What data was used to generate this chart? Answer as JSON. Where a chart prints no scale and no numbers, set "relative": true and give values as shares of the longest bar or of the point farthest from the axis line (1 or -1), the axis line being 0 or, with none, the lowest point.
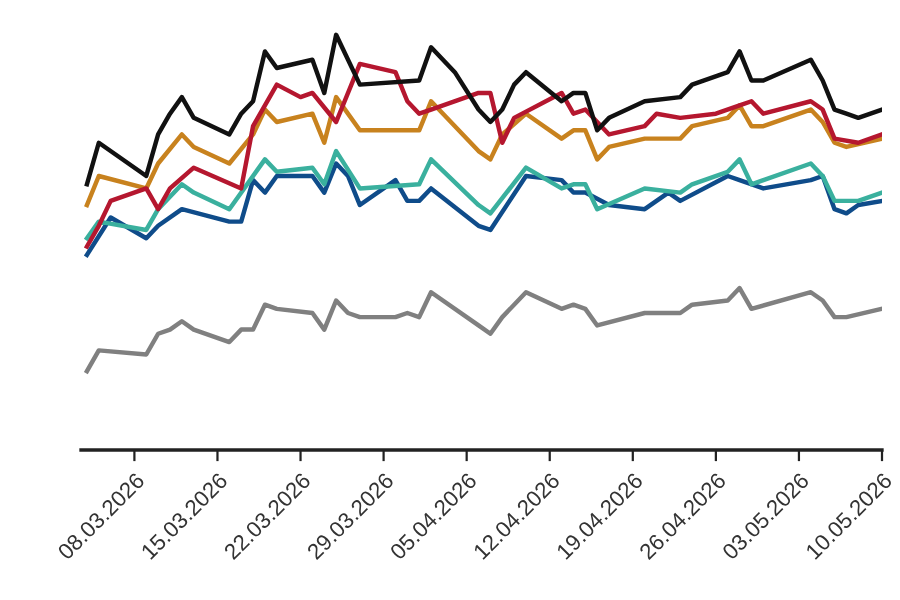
{
  "chart_data": {
    "type": "line",
    "relative": true,
    "line_style": "solid",
    "marker": "none",
    "xlim": [
      "2026-03-03T12:00",
      "2026-05-10"
    ],
    "xticks": [
      {
        "value": "2026-03-08",
        "label": "08.03.2026"
      },
      {
        "value": "2026-03-15",
        "label": "15.03.2026"
      },
      {
        "value": "2026-03-22",
        "label": "22.03.2026"
      },
      {
        "value": "2026-03-29",
        "label": "29.03.2026"
      },
      {
        "value": "2026-04-05",
        "label": "05.04.2026"
      },
      {
        "value": "2026-04-12",
        "label": "12.04.2026"
      },
      {
        "value": "2026-04-19",
        "label": "19.04.2026"
      },
      {
        "value": "2026-04-26",
        "label": "26.04.2026"
      },
      {
        "value": "2026-05-03",
        "label": "03.05.2026"
      },
      {
        "value": "2026-05-10",
        "label": "10.05.2026"
      }
    ],
    "series": [
      {
        "color": "#808080",
        "x": [
          "2026-03-04",
          "2026-03-05",
          "2026-03-09",
          "2026-03-10",
          "2026-03-11",
          "2026-03-12",
          "2026-03-13",
          "2026-03-16",
          "2026-03-17",
          "2026-03-18",
          "2026-03-19",
          "2026-03-20",
          "2026-03-23",
          "2026-03-24",
          "2026-03-25",
          "2026-03-26",
          "2026-03-27",
          "2026-03-30",
          "2026-03-31",
          "2026-04-01",
          "2026-04-02",
          "2026-04-06",
          "2026-04-07",
          "2026-04-08",
          "2026-04-10",
          "2026-04-13",
          "2026-04-14",
          "2026-04-15",
          "2026-04-16",
          "2026-04-20",
          "2026-04-23",
          "2026-04-24",
          "2026-04-27",
          "2026-04-28",
          "2026-04-29",
          "2026-05-04",
          "2026-05-05",
          "2026-05-06",
          "2026-05-07",
          "2026-05-10"
        ],
        "values": [
          0.19,
          0.24,
          0.23,
          0.28,
          0.29,
          0.31,
          0.29,
          0.26,
          0.29,
          0.29,
          0.35,
          0.34,
          0.33,
          0.29,
          0.36,
          0.33,
          0.32,
          0.32,
          0.33,
          0.32,
          0.38,
          0.3,
          0.28,
          0.32,
          0.38,
          0.34,
          0.35,
          0.34,
          0.3,
          0.33,
          0.33,
          0.35,
          0.36,
          0.39,
          0.34,
          0.38,
          0.36,
          0.32,
          0.32,
          0.34
        ]
      },
      {
        "color": "#0f4c8a",
        "x": [
          "2026-03-04",
          "2026-03-06",
          "2026-03-09",
          "2026-03-10",
          "2026-03-12",
          "2026-03-16",
          "2026-03-17",
          "2026-03-18",
          "2026-03-19",
          "2026-03-20",
          "2026-03-23",
          "2026-03-24",
          "2026-03-25",
          "2026-03-26",
          "2026-03-27",
          "2026-03-30",
          "2026-03-31",
          "2026-04-01",
          "2026-04-02",
          "2026-04-06",
          "2026-04-07",
          "2026-04-10",
          "2026-04-13",
          "2026-04-14",
          "2026-04-15",
          "2026-04-17",
          "2026-04-20",
          "2026-04-22",
          "2026-04-23",
          "2026-04-27",
          "2026-04-28",
          "2026-04-30",
          "2026-05-04",
          "2026-05-05",
          "2026-05-06",
          "2026-05-07",
          "2026-05-08",
          "2026-05-10"
        ],
        "values": [
          0.47,
          0.56,
          0.51,
          0.54,
          0.58,
          0.55,
          0.55,
          0.65,
          0.62,
          0.66,
          0.66,
          0.62,
          0.69,
          0.66,
          0.59,
          0.65,
          0.6,
          0.6,
          0.63,
          0.54,
          0.53,
          0.66,
          0.65,
          0.62,
          0.62,
          0.59,
          0.58,
          0.62,
          0.6,
          0.66,
          0.65,
          0.63,
          0.65,
          0.66,
          0.58,
          0.57,
          0.59,
          0.6
        ]
      },
      {
        "color": "#3ab09e",
        "x": [
          "2026-03-04",
          "2026-03-05",
          "2026-03-09",
          "2026-03-10",
          "2026-03-12",
          "2026-03-13",
          "2026-03-16",
          "2026-03-19",
          "2026-03-20",
          "2026-03-23",
          "2026-03-24",
          "2026-03-25",
          "2026-03-27",
          "2026-04-01",
          "2026-04-02",
          "2026-04-06",
          "2026-04-07",
          "2026-04-10",
          "2026-04-13",
          "2026-04-14",
          "2026-04-15",
          "2026-04-16",
          "2026-04-20",
          "2026-04-23",
          "2026-04-24",
          "2026-04-27",
          "2026-04-28",
          "2026-04-29",
          "2026-05-04",
          "2026-05-05",
          "2026-05-06",
          "2026-05-08",
          "2026-05-10"
        ],
        "values": [
          0.51,
          0.55,
          0.53,
          0.58,
          0.64,
          0.62,
          0.58,
          0.7,
          0.67,
          0.68,
          0.64,
          0.72,
          0.63,
          0.64,
          0.7,
          0.59,
          0.57,
          0.68,
          0.63,
          0.64,
          0.64,
          0.58,
          0.63,
          0.62,
          0.64,
          0.67,
          0.7,
          0.64,
          0.69,
          0.66,
          0.6,
          0.6,
          0.62
        ]
      },
      {
        "color": "#c8821e",
        "x": [
          "2026-03-04",
          "2026-03-05",
          "2026-03-09",
          "2026-03-10",
          "2026-03-12",
          "2026-03-13",
          "2026-03-16",
          "2026-03-18",
          "2026-03-19",
          "2026-03-20",
          "2026-03-23",
          "2026-03-24",
          "2026-03-25",
          "2026-03-27",
          "2026-04-01",
          "2026-04-02",
          "2026-04-06",
          "2026-04-07",
          "2026-04-08",
          "2026-04-10",
          "2026-04-13",
          "2026-04-14",
          "2026-04-15",
          "2026-04-16",
          "2026-04-17",
          "2026-04-20",
          "2026-04-23",
          "2026-04-24",
          "2026-04-27",
          "2026-04-28",
          "2026-04-29",
          "2026-04-30",
          "2026-05-04",
          "2026-05-05",
          "2026-05-06",
          "2026-05-07",
          "2026-05-10"
        ],
        "values": [
          0.59,
          0.66,
          0.63,
          0.69,
          0.76,
          0.73,
          0.69,
          0.76,
          0.82,
          0.79,
          0.81,
          0.74,
          0.85,
          0.77,
          0.77,
          0.84,
          0.72,
          0.7,
          0.76,
          0.81,
          0.75,
          0.77,
          0.77,
          0.7,
          0.73,
          0.75,
          0.75,
          0.78,
          0.8,
          0.83,
          0.78,
          0.78,
          0.82,
          0.79,
          0.74,
          0.73,
          0.75
        ]
      },
      {
        "color": "#b5172f",
        "x": [
          "2026-03-04",
          "2026-03-05",
          "2026-03-06",
          "2026-03-09",
          "2026-03-10",
          "2026-03-11",
          "2026-03-13",
          "2026-03-17",
          "2026-03-18",
          "2026-03-20",
          "2026-03-22",
          "2026-03-23",
          "2026-03-25",
          "2026-03-27",
          "2026-03-30",
          "2026-03-31",
          "2026-04-01",
          "2026-04-02",
          "2026-04-06",
          "2026-04-07",
          "2026-04-08",
          "2026-04-09",
          "2026-04-13",
          "2026-04-14",
          "2026-04-15",
          "2026-04-17",
          "2026-04-20",
          "2026-04-21",
          "2026-04-23",
          "2026-04-26",
          "2026-04-28",
          "2026-04-29",
          "2026-04-30",
          "2026-05-04",
          "2026-05-05",
          "2026-05-06",
          "2026-05-08",
          "2026-05-10"
        ],
        "values": [
          0.49,
          0.54,
          0.6,
          0.63,
          0.58,
          0.63,
          0.68,
          0.63,
          0.78,
          0.88,
          0.85,
          0.86,
          0.79,
          0.93,
          0.91,
          0.84,
          0.81,
          0.82,
          0.86,
          0.86,
          0.74,
          0.8,
          0.86,
          0.81,
          0.82,
          0.76,
          0.78,
          0.81,
          0.8,
          0.81,
          0.83,
          0.84,
          0.81,
          0.84,
          0.82,
          0.75,
          0.74,
          0.76
        ]
      },
      {
        "color": "#111111",
        "x": [
          "2026-03-04",
          "2026-03-05",
          "2026-03-09",
          "2026-03-10",
          "2026-03-11",
          "2026-03-12",
          "2026-03-13",
          "2026-03-16",
          "2026-03-17",
          "2026-03-18",
          "2026-03-19",
          "2026-03-20",
          "2026-03-23",
          "2026-03-24",
          "2026-03-25",
          "2026-03-27",
          "2026-04-01",
          "2026-04-02",
          "2026-04-04",
          "2026-04-06",
          "2026-04-07",
          "2026-04-08",
          "2026-04-09",
          "2026-04-10",
          "2026-04-13",
          "2026-04-14",
          "2026-04-15",
          "2026-04-16",
          "2026-04-17",
          "2026-04-20",
          "2026-04-23",
          "2026-04-24",
          "2026-04-27",
          "2026-04-28",
          "2026-04-29",
          "2026-04-30",
          "2026-05-04",
          "2026-05-05",
          "2026-05-06",
          "2026-05-07",
          "2026-05-08",
          "2026-05-10"
        ],
        "values": [
          0.64,
          0.74,
          0.66,
          0.76,
          0.81,
          0.85,
          0.8,
          0.76,
          0.81,
          0.84,
          0.96,
          0.92,
          0.94,
          0.86,
          1.0,
          0.88,
          0.89,
          0.97,
          0.91,
          0.82,
          0.79,
          0.82,
          0.88,
          0.91,
          0.84,
          0.86,
          0.86,
          0.77,
          0.8,
          0.84,
          0.85,
          0.88,
          0.91,
          0.96,
          0.89,
          0.89,
          0.94,
          0.89,
          0.82,
          0.81,
          0.8,
          0.82
        ]
      }
    ]
  }
}
